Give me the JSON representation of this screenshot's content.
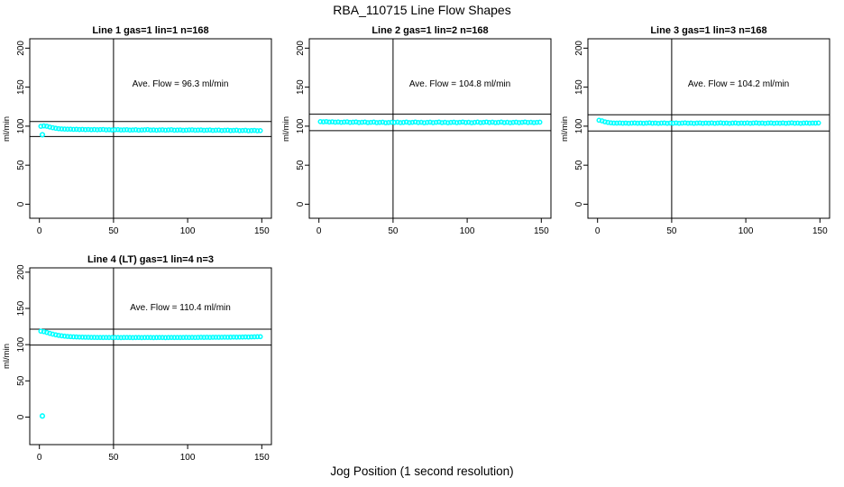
{
  "page_title": "RBA_110715  Line Flow Shapes",
  "bottom_axis_label": "Jog Position (1 second resolution)",
  "colors": {
    "point": "#00FFFF",
    "axis": "#000000",
    "background": "#FFFFFF"
  },
  "chart_data": [
    {
      "type": "scatter",
      "title": "Line 1 gas=1 lin=1 n=168",
      "annotation": "Ave. Flow =  96.3  ml/min",
      "ave_flow_ml_min": 96.3,
      "ylabel": "ml/min",
      "x_ticks": [
        0,
        50,
        100,
        150
      ],
      "y_ticks": [
        0,
        50,
        100,
        150,
        200
      ],
      "xlim": [
        -6.5,
        156.5
      ],
      "ylim": [
        -18,
        212
      ],
      "vline_x": 50,
      "hlines": [
        105.9,
        86.7
      ],
      "x": [
        1,
        3,
        5,
        7,
        9,
        11,
        13,
        15,
        17,
        19,
        21,
        23,
        25,
        27,
        29,
        31,
        33,
        35,
        37,
        39,
        41,
        43,
        45,
        47,
        49,
        51,
        53,
        55,
        57,
        59,
        61,
        63,
        65,
        67,
        69,
        71,
        73,
        75,
        77,
        79,
        81,
        83,
        85,
        87,
        89,
        91,
        93,
        95,
        97,
        99,
        101,
        103,
        105,
        107,
        109,
        111,
        113,
        115,
        117,
        119,
        121,
        123,
        125,
        127,
        129,
        131,
        133,
        135,
        137,
        139,
        141,
        143,
        145,
        147,
        149
      ],
      "y": [
        99.8,
        100.3,
        99.9,
        98.9,
        98.0,
        97.3,
        96.8,
        96.5,
        96.3,
        96.1,
        96.2,
        95.9,
        96.0,
        95.7,
        95.9,
        95.6,
        95.8,
        95.5,
        95.7,
        95.4,
        95.6,
        95.8,
        95.3,
        95.5,
        95.2,
        95.4,
        95.6,
        95.1,
        95.3,
        95.5,
        95.0,
        95.2,
        95.4,
        94.9,
        95.1,
        95.3,
        95.6,
        95.0,
        95.2,
        94.8,
        95.1,
        95.3,
        94.9,
        95.1,
        95.4,
        94.8,
        95.0,
        95.2,
        94.7,
        94.9,
        95.1,
        95.3,
        94.8,
        95.0,
        95.2,
        94.7,
        94.9,
        95.1,
        94.6,
        94.8,
        95.0,
        94.5,
        94.7,
        94.9,
        94.4,
        94.6,
        94.8,
        94.3,
        94.5,
        94.7,
        94.2,
        94.4,
        94.6,
        94.1,
        94.3
      ],
      "outliers": [
        [
          2,
          89
        ]
      ]
    },
    {
      "type": "scatter",
      "title": "Line 2 gas=1 lin=2 n=168",
      "annotation": "Ave. Flow =  104.8  ml/min",
      "ave_flow_ml_min": 104.8,
      "ylabel": "ml/min",
      "x_ticks": [
        0,
        50,
        100,
        150
      ],
      "y_ticks": [
        0,
        50,
        100,
        150,
        200
      ],
      "xlim": [
        -6.5,
        156.5
      ],
      "ylim": [
        -18,
        212
      ],
      "vline_x": 50,
      "hlines": [
        115.3,
        94.3
      ],
      "x": [
        1,
        3,
        5,
        7,
        9,
        11,
        13,
        15,
        17,
        19,
        21,
        23,
        25,
        27,
        29,
        31,
        33,
        35,
        37,
        39,
        41,
        43,
        45,
        47,
        49,
        51,
        53,
        55,
        57,
        59,
        61,
        63,
        65,
        67,
        69,
        71,
        73,
        75,
        77,
        79,
        81,
        83,
        85,
        87,
        89,
        91,
        93,
        95,
        97,
        99,
        101,
        103,
        105,
        107,
        109,
        111,
        113,
        115,
        117,
        119,
        121,
        123,
        125,
        127,
        129,
        131,
        133,
        135,
        137,
        139,
        141,
        143,
        145,
        147,
        149
      ],
      "y": [
        105.8,
        105.5,
        105.9,
        105.3,
        105.6,
        105.1,
        105.4,
        104.9,
        105.2,
        105.5,
        104.8,
        105.1,
        105.4,
        104.7,
        105.0,
        105.3,
        104.6,
        104.9,
        105.2,
        104.5,
        104.8,
        105.1,
        104.4,
        104.7,
        105.0,
        104.8,
        105.1,
        104.5,
        104.8,
        105.2,
        104.6,
        104.9,
        105.3,
        104.7,
        105.0,
        104.4,
        104.8,
        105.1,
        104.5,
        104.9,
        105.2,
        104.6,
        105.0,
        104.4,
        104.8,
        105.1,
        104.5,
        104.9,
        105.3,
        104.7,
        105.0,
        104.4,
        104.8,
        105.2,
        104.6,
        104.9,
        105.3,
        104.7,
        105.1,
        104.5,
        104.8,
        105.2,
        104.6,
        105.0,
        104.4,
        104.8,
        105.1,
        104.5,
        104.9,
        105.3,
        104.7,
        105.0,
        104.6,
        104.9,
        105.1
      ],
      "outliers": []
    },
    {
      "type": "scatter",
      "title": "Line 3 gas=1 lin=3 n=168",
      "annotation": "Ave. Flow =  104.2  ml/min",
      "ave_flow_ml_min": 104.2,
      "ylabel": "ml/min",
      "x_ticks": [
        0,
        50,
        100,
        150
      ],
      "y_ticks": [
        0,
        50,
        100,
        150,
        200
      ],
      "xlim": [
        -6.5,
        156.5
      ],
      "ylim": [
        -18,
        212
      ],
      "vline_x": 50,
      "hlines": [
        114.6,
        93.8
      ],
      "x": [
        1,
        3,
        5,
        7,
        9,
        11,
        13,
        15,
        17,
        19,
        21,
        23,
        25,
        27,
        29,
        31,
        33,
        35,
        37,
        39,
        41,
        43,
        45,
        47,
        49,
        51,
        53,
        55,
        57,
        59,
        61,
        63,
        65,
        67,
        69,
        71,
        73,
        75,
        77,
        79,
        81,
        83,
        85,
        87,
        89,
        91,
        93,
        95,
        97,
        99,
        101,
        103,
        105,
        107,
        109,
        111,
        113,
        115,
        117,
        119,
        121,
        123,
        125,
        127,
        129,
        131,
        133,
        135,
        137,
        139,
        141,
        143,
        145,
        147,
        149
      ],
      "y": [
        107.6,
        106.8,
        105.6,
        104.8,
        104.3,
        104.0,
        103.9,
        104.1,
        103.8,
        104.0,
        103.7,
        103.9,
        104.1,
        103.8,
        104.0,
        103.7,
        103.9,
        104.2,
        103.8,
        104.0,
        103.6,
        103.9,
        104.1,
        103.7,
        104.0,
        103.8,
        104.1,
        103.7,
        103.9,
        104.2,
        103.8,
        104.0,
        103.6,
        103.9,
        104.1,
        103.7,
        104.0,
        103.8,
        104.1,
        103.7,
        103.9,
        104.2,
        103.8,
        104.0,
        103.6,
        103.9,
        104.1,
        103.7,
        104.0,
        103.8,
        104.1,
        103.7,
        103.9,
        104.2,
        103.8,
        104.0,
        103.6,
        103.9,
        104.1,
        103.7,
        104.0,
        103.8,
        104.1,
        103.7,
        103.9,
        104.2,
        103.8,
        104.0,
        103.6,
        103.9,
        104.1,
        103.8,
        104.0,
        103.9,
        104.1
      ],
      "outliers": []
    },
    {
      "type": "scatter",
      "title": "Line 4 (LT) gas=1 lin=4 n=3",
      "annotation": "Ave. Flow =  110.4  ml/min",
      "ave_flow_ml_min": 110.4,
      "ylabel": "ml/min",
      "x_ticks": [
        0,
        50,
        100,
        150
      ],
      "y_ticks": [
        0,
        50,
        100,
        150,
        200
      ],
      "xlim": [
        -6.5,
        156.5
      ],
      "ylim": [
        -38,
        206
      ],
      "vline_x": 50,
      "hlines": [
        121.4,
        99.4
      ],
      "x": [
        1,
        3,
        5,
        7,
        9,
        11,
        13,
        15,
        17,
        19,
        21,
        23,
        25,
        27,
        29,
        31,
        33,
        35,
        37,
        39,
        41,
        43,
        45,
        47,
        49,
        51,
        53,
        55,
        57,
        59,
        61,
        63,
        65,
        67,
        69,
        71,
        73,
        75,
        77,
        79,
        81,
        83,
        85,
        87,
        89,
        91,
        93,
        95,
        97,
        99,
        101,
        103,
        105,
        107,
        109,
        111,
        113,
        115,
        117,
        119,
        121,
        123,
        125,
        127,
        129,
        131,
        133,
        135,
        137,
        139,
        141,
        143,
        145,
        147,
        149
      ],
      "y": [
        118.6,
        117.9,
        116.8,
        115.6,
        114.5,
        113.6,
        112.8,
        112.2,
        111.7,
        111.3,
        111.0,
        110.8,
        110.6,
        110.4,
        110.3,
        110.2,
        110.1,
        110.0,
        110.0,
        109.9,
        109.9,
        109.8,
        109.9,
        109.8,
        109.8,
        109.9,
        109.8,
        109.7,
        109.8,
        109.9,
        109.8,
        109.7,
        109.8,
        109.9,
        109.7,
        109.8,
        109.9,
        109.8,
        109.7,
        109.8,
        109.9,
        109.8,
        109.7,
        109.8,
        109.9,
        109.8,
        109.9,
        109.8,
        109.9,
        110.0,
        109.9,
        110.0,
        109.9,
        110.0,
        110.1,
        110.0,
        110.1,
        110.0,
        110.1,
        110.2,
        110.1,
        110.2,
        110.3,
        110.2,
        110.3,
        110.4,
        110.3,
        110.4,
        110.5,
        110.6,
        110.5,
        110.7,
        110.8,
        110.9,
        111.0
      ],
      "outliers": [
        [
          2,
          1.5
        ]
      ]
    }
  ]
}
